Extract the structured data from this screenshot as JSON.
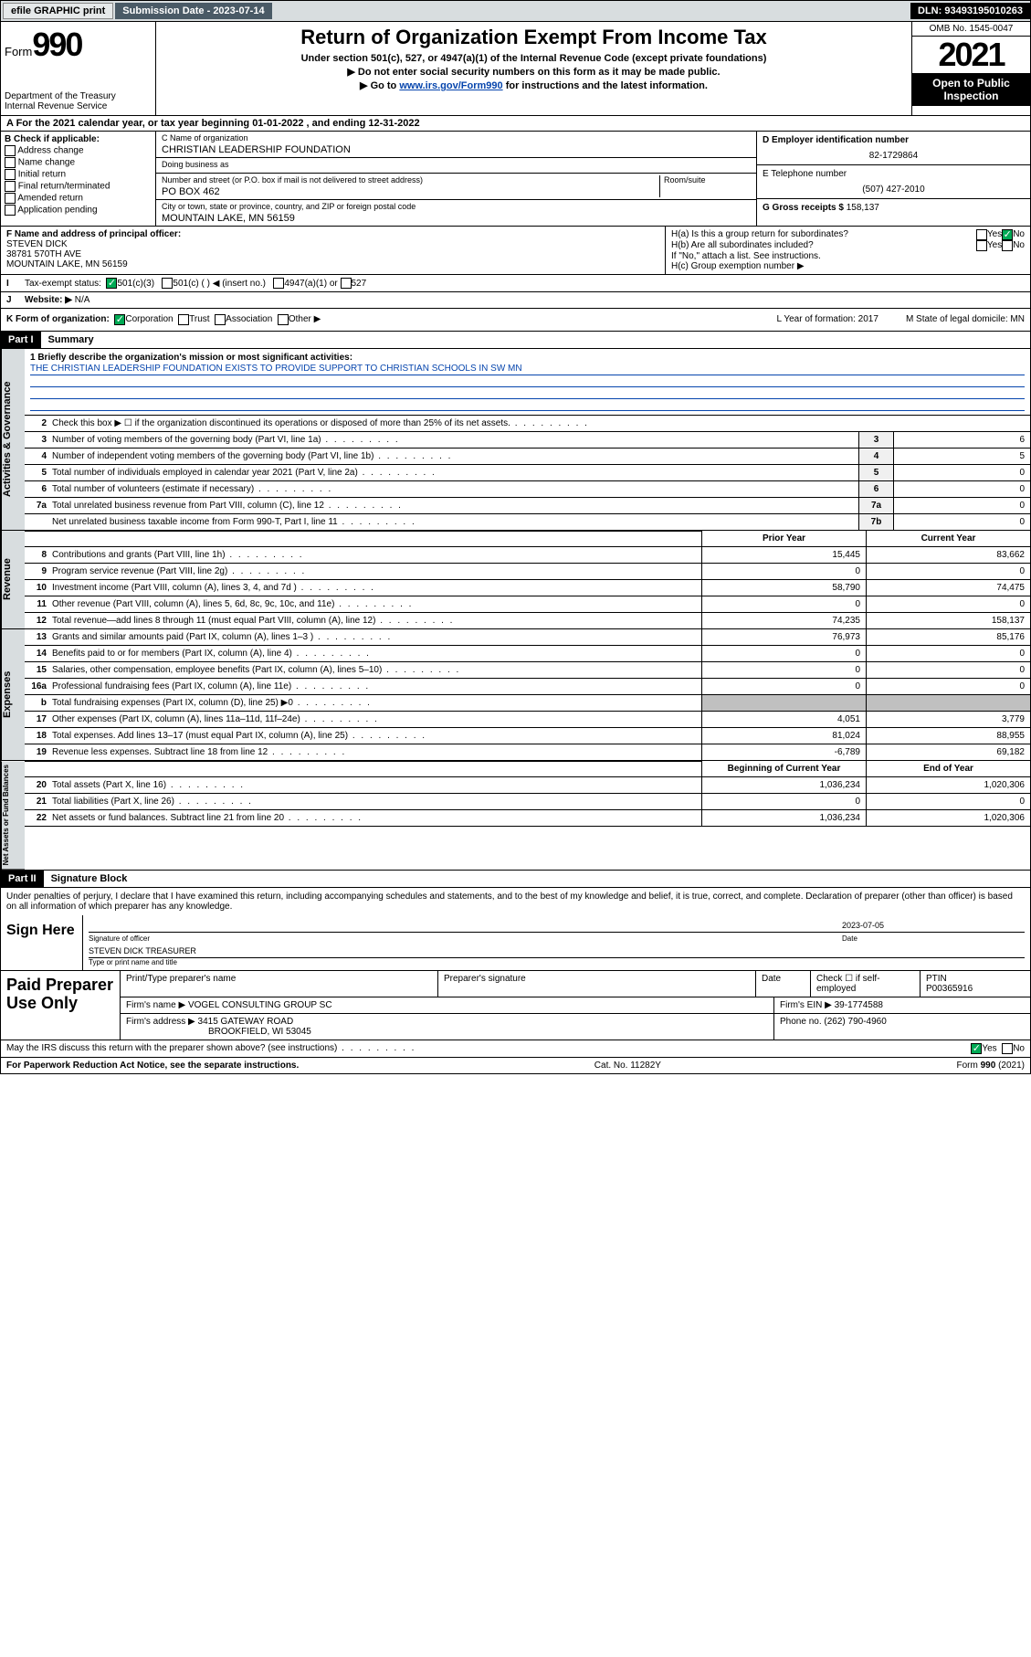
{
  "topbar": {
    "efile": "efile GRAPHIC print",
    "submission_label": "Submission Date - 2023-07-14",
    "dln": "DLN: 93493195010263"
  },
  "header": {
    "form_prefix": "Form",
    "form_number": "990",
    "dept1": "Department of the Treasury",
    "dept2": "Internal Revenue Service",
    "title": "Return of Organization Exempt From Income Tax",
    "subtitle": "Under section 501(c), 527, or 4947(a)(1) of the Internal Revenue Code (except private foundations)",
    "arrow1": "▶ Do not enter social security numbers on this form as it may be made public.",
    "arrow2_prefix": "▶ Go to ",
    "arrow2_link": "www.irs.gov/Form990",
    "arrow2_suffix": " for instructions and the latest information.",
    "omb": "OMB No. 1545-0047",
    "year": "2021",
    "inspection": "Open to Public Inspection"
  },
  "line_a": "A For the 2021 calendar year, or tax year beginning 01-01-2022   , and ending 12-31-2022",
  "col_b": {
    "header": "B Check if applicable:",
    "items": [
      "Address change",
      "Name change",
      "Initial return",
      "Final return/terminated",
      "Amended return",
      "Application pending"
    ]
  },
  "col_c": {
    "name_label": "C Name of organization",
    "name": "CHRISTIAN LEADERSHIP FOUNDATION",
    "dba_label": "Doing business as",
    "dba": "",
    "street_label": "Number and street (or P.O. box if mail is not delivered to street address)",
    "room_label": "Room/suite",
    "street": "PO BOX 462",
    "city_label": "City or town, state or province, country, and ZIP or foreign postal code",
    "city": "MOUNTAIN LAKE, MN  56159"
  },
  "col_d": {
    "ein_label": "D Employer identification number",
    "ein": "82-1729864",
    "phone_label": "E Telephone number",
    "phone": "(507) 427-2010",
    "gross_label": "G Gross receipts $",
    "gross": "158,137"
  },
  "col_f": {
    "label": "F  Name and address of principal officer:",
    "name": "STEVEN DICK",
    "street": "38781 570TH AVE",
    "city": "MOUNTAIN LAKE, MN  56159"
  },
  "col_h": {
    "ha": "H(a)  Is this a group return for subordinates?",
    "hb": "H(b)  Are all subordinates included?",
    "hb_note": "If \"No,\" attach a list. See instructions.",
    "hc": "H(c)  Group exemption number ▶"
  },
  "row_i_label": "Tax-exempt status:",
  "row_i_opts": {
    "a": "501(c)(3)",
    "b": "501(c) (  ) ◀ (insert no.)",
    "c": "4947(a)(1) or",
    "d": "527"
  },
  "row_j": {
    "label": "Website: ▶",
    "val": "N/A"
  },
  "row_k": {
    "label": "K Form of organization:",
    "opts": [
      "Corporation",
      "Trust",
      "Association",
      "Other ▶"
    ],
    "l": "L Year of formation: 2017",
    "m": "M State of legal domicile: MN"
  },
  "part1": {
    "label": "Part I",
    "title": "Summary"
  },
  "mission": {
    "label": "1  Briefly describe the organization's mission or most significant activities:",
    "text": "THE CHRISTIAN LEADERSHIP FOUNDATION EXISTS TO PROVIDE SUPPORT TO CHRISTIAN SCHOOLS IN SW MN"
  },
  "gov_rows": [
    {
      "n": "2",
      "t": "Check this box ▶ ☐  if the organization discontinued its operations or disposed of more than 25% of its net assets.",
      "box": "",
      "val": ""
    },
    {
      "n": "3",
      "t": "Number of voting members of the governing body (Part VI, line 1a)",
      "box": "3",
      "val": "6"
    },
    {
      "n": "4",
      "t": "Number of independent voting members of the governing body (Part VI, line 1b)",
      "box": "4",
      "val": "5"
    },
    {
      "n": "5",
      "t": "Total number of individuals employed in calendar year 2021 (Part V, line 2a)",
      "box": "5",
      "val": "0"
    },
    {
      "n": "6",
      "t": "Total number of volunteers (estimate if necessary)",
      "box": "6",
      "val": "0"
    },
    {
      "n": "7a",
      "t": "Total unrelated business revenue from Part VIII, column (C), line 12",
      "box": "7a",
      "val": "0"
    },
    {
      "n": "",
      "t": "Net unrelated business taxable income from Form 990-T, Part I, line 11",
      "box": "7b",
      "val": "0"
    }
  ],
  "two_col_hdr": {
    "prior": "Prior Year",
    "current": "Current Year"
  },
  "rev_rows": [
    {
      "n": "8",
      "t": "Contributions and grants (Part VIII, line 1h)",
      "p": "15,445",
      "c": "83,662"
    },
    {
      "n": "9",
      "t": "Program service revenue (Part VIII, line 2g)",
      "p": "0",
      "c": "0"
    },
    {
      "n": "10",
      "t": "Investment income (Part VIII, column (A), lines 3, 4, and 7d )",
      "p": "58,790",
      "c": "74,475"
    },
    {
      "n": "11",
      "t": "Other revenue (Part VIII, column (A), lines 5, 6d, 8c, 9c, 10c, and 11e)",
      "p": "0",
      "c": "0"
    },
    {
      "n": "12",
      "t": "Total revenue—add lines 8 through 11 (must equal Part VIII, column (A), line 12)",
      "p": "74,235",
      "c": "158,137"
    }
  ],
  "exp_rows": [
    {
      "n": "13",
      "t": "Grants and similar amounts paid (Part IX, column (A), lines 1–3 )",
      "p": "76,973",
      "c": "85,176"
    },
    {
      "n": "14",
      "t": "Benefits paid to or for members (Part IX, column (A), line 4)",
      "p": "0",
      "c": "0"
    },
    {
      "n": "15",
      "t": "Salaries, other compensation, employee benefits (Part IX, column (A), lines 5–10)",
      "p": "0",
      "c": "0"
    },
    {
      "n": "16a",
      "t": "Professional fundraising fees (Part IX, column (A), line 11e)",
      "p": "0",
      "c": "0"
    },
    {
      "n": "b",
      "t": "Total fundraising expenses (Part IX, column (D), line 25) ▶0",
      "p": "",
      "c": "",
      "shade": true
    },
    {
      "n": "17",
      "t": "Other expenses (Part IX, column (A), lines 11a–11d, 11f–24e)",
      "p": "4,051",
      "c": "3,779"
    },
    {
      "n": "18",
      "t": "Total expenses. Add lines 13–17 (must equal Part IX, column (A), line 25)",
      "p": "81,024",
      "c": "88,955"
    },
    {
      "n": "19",
      "t": "Revenue less expenses. Subtract line 18 from line 12",
      "p": "-6,789",
      "c": "69,182"
    }
  ],
  "na_hdr": {
    "begin": "Beginning of Current Year",
    "end": "End of Year"
  },
  "na_rows": [
    {
      "n": "20",
      "t": "Total assets (Part X, line 16)",
      "p": "1,036,234",
      "c": "1,020,306"
    },
    {
      "n": "21",
      "t": "Total liabilities (Part X, line 26)",
      "p": "0",
      "c": "0"
    },
    {
      "n": "22",
      "t": "Net assets or fund balances. Subtract line 21 from line 20",
      "p": "1,036,234",
      "c": "1,020,306"
    }
  ],
  "side_labels": {
    "gov": "Activities & Governance",
    "rev": "Revenue",
    "exp": "Expenses",
    "na": "Net Assets or Fund Balances"
  },
  "part2": {
    "label": "Part II",
    "title": "Signature Block"
  },
  "sig": {
    "perjury": "Under penalties of perjury, I declare that I have examined this return, including accompanying schedules and statements, and to the best of my knowledge and belief, it is true, correct, and complete. Declaration of preparer (other than officer) is based on all information of which preparer has any knowledge.",
    "sign_here": "Sign Here",
    "sig_officer_label": "Signature of officer",
    "date_label": "Date",
    "date": "2023-07-05",
    "name_title": "STEVEN DICK TREASURER",
    "name_title_label": "Type or print name and title"
  },
  "prep": {
    "label": "Paid Preparer Use Only",
    "h_name": "Print/Type preparer's name",
    "h_sig": "Preparer's signature",
    "h_date": "Date",
    "h_check": "Check ☐ if self-employed",
    "h_ptin": "PTIN",
    "ptin": "P00365916",
    "firm_name_label": "Firm's name    ▶",
    "firm_name": "VOGEL CONSULTING GROUP SC",
    "firm_ein_label": "Firm's EIN ▶",
    "firm_ein": "39-1774588",
    "firm_addr_label": "Firm's address ▶",
    "firm_addr1": "3415 GATEWAY ROAD",
    "firm_addr2": "BROOKFIELD, WI  53045",
    "phone_label": "Phone no.",
    "phone": "(262) 790-4960"
  },
  "discuss": "May the IRS discuss this return with the preparer shown above? (see instructions)",
  "footer": {
    "left": "For Paperwork Reduction Act Notice, see the separate instructions.",
    "mid": "Cat. No. 11282Y",
    "right_prefix": "Form ",
    "right_form": "990",
    "right_suffix": " (2021)"
  },
  "colors": {
    "topbar_bg": "#d8dddf",
    "link": "#0645ad",
    "check_green": "#00aa55"
  }
}
